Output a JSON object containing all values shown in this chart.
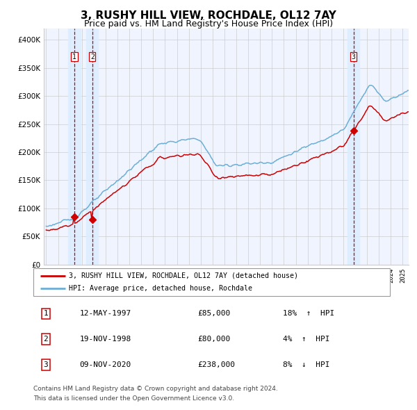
{
  "title": "3, RUSHY HILL VIEW, ROCHDALE, OL12 7AY",
  "subtitle": "Price paid vs. HM Land Registry's House Price Index (HPI)",
  "title_fontsize": 11,
  "subtitle_fontsize": 9,
  "ylabel_ticks": [
    "£0",
    "£50K",
    "£100K",
    "£150K",
    "£200K",
    "£250K",
    "£300K",
    "£350K",
    "£400K"
  ],
  "ytick_vals": [
    0,
    50000,
    100000,
    150000,
    200000,
    250000,
    300000,
    350000,
    400000
  ],
  "ylim": [
    0,
    420000
  ],
  "xlim_start": 1994.8,
  "xlim_end": 2025.5,
  "transactions": [
    {
      "num": 1,
      "date": "12-MAY-1997",
      "price": 85000,
      "hpi_pct": "18%",
      "direction": "↑",
      "year": 1997.37
    },
    {
      "num": 2,
      "date": "19-NOV-1998",
      "price": 80000,
      "hpi_pct": "4%",
      "direction": "↑",
      "year": 1998.88
    },
    {
      "num": 3,
      "date": "09-NOV-2020",
      "price": 238000,
      "hpi_pct": "8%",
      "direction": "↓",
      "year": 2020.86
    }
  ],
  "legend_line1": "3, RUSHY HILL VIEW, ROCHDALE, OL12 7AY (detached house)",
  "legend_line2": "HPI: Average price, detached house, Rochdale",
  "footer1": "Contains HM Land Registry data © Crown copyright and database right 2024.",
  "footer2": "This data is licensed under the Open Government Licence v3.0.",
  "hpi_color": "#6baed6",
  "price_color": "#cc0000",
  "marker_color": "#cc0000",
  "vline_color": "#cc0000",
  "shade_color": "#ddeeff",
  "grid_color": "#cccccc",
  "background_color": "#f0f4ff",
  "table_border_color": "#cc0000"
}
